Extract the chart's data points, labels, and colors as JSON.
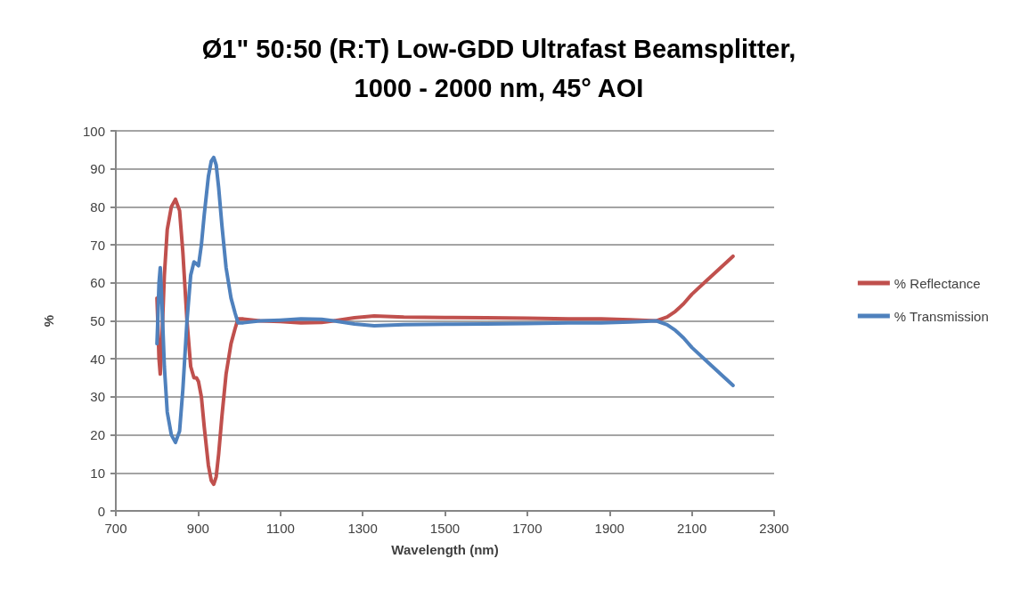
{
  "chart_data": {
    "type": "line",
    "title": "Ø1\" 50:50 (R:T) Low-GDD Ultrafast Beamsplitter,\n1000 - 2000 nm, 45° AOI",
    "xlabel": "Wavelength (nm)",
    "ylabel": "%",
    "xlim": [
      700,
      2300
    ],
    "xticks": [
      700,
      900,
      1100,
      1300,
      1500,
      1700,
      1900,
      2100,
      2300
    ],
    "ylim": [
      0,
      100
    ],
    "yticks": [
      0,
      10,
      20,
      30,
      40,
      50,
      60,
      70,
      80,
      90,
      100
    ],
    "grid": "y",
    "legend": "right",
    "marker": "none",
    "line_style": "solid",
    "series": [
      {
        "name": "% Reflectance",
        "color": "#c0504d",
        "x": [
          800,
          802,
          805,
          808,
          812,
          818,
          825,
          835,
          845,
          855,
          863,
          873,
          882,
          890,
          896,
          901,
          908,
          915,
          925,
          932,
          938,
          944,
          950,
          958,
          968,
          980,
          990,
          997,
          1010,
          1050,
          1100,
          1150,
          1200,
          1230,
          1280,
          1328,
          1400,
          1500,
          1600,
          1700,
          1800,
          1880,
          1950,
          2014,
          2040,
          2060,
          2080,
          2100,
          2130,
          2150,
          2180,
          2200
        ],
        "values": [
          56,
          50,
          40,
          36,
          45,
          62,
          74,
          80,
          82,
          79,
          68,
          50,
          38,
          35,
          35,
          34,
          30,
          22,
          12,
          8,
          7,
          9,
          15,
          25,
          36,
          44,
          48,
          50.5,
          50.5,
          50,
          49.8,
          49.5,
          49.6,
          50,
          50.8,
          51.3,
          51,
          50.9,
          50.8,
          50.7,
          50.5,
          50.5,
          50.3,
          50,
          51,
          52.5,
          54.5,
          57,
          60,
          62,
          65,
          67
        ]
      },
      {
        "name": "% Transmission",
        "color": "#4f81bd",
        "x": [
          800,
          802,
          805,
          808,
          812,
          818,
          825,
          835,
          845,
          855,
          863,
          873,
          882,
          890,
          896,
          901,
          908,
          915,
          925,
          932,
          938,
          944,
          950,
          958,
          968,
          980,
          990,
          997,
          1010,
          1050,
          1100,
          1150,
          1200,
          1230,
          1280,
          1328,
          1400,
          1500,
          1600,
          1700,
          1800,
          1880,
          1950,
          2014,
          2040,
          2060,
          2080,
          2100,
          2130,
          2150,
          2180,
          2200
        ],
        "values": [
          44,
          50,
          60,
          64,
          55,
          38,
          26,
          20,
          18,
          21,
          32,
          50,
          62,
          65.5,
          65,
          64.5,
          70,
          78,
          88,
          92,
          93,
          91,
          85,
          75,
          64,
          56,
          52,
          49.5,
          49.5,
          50,
          50.2,
          50.5,
          50.4,
          50,
          49.2,
          48.7,
          49,
          49.1,
          49.2,
          49.3,
          49.5,
          49.5,
          49.7,
          50,
          49,
          47.5,
          45.5,
          43,
          40,
          38,
          35,
          33
        ]
      }
    ]
  }
}
